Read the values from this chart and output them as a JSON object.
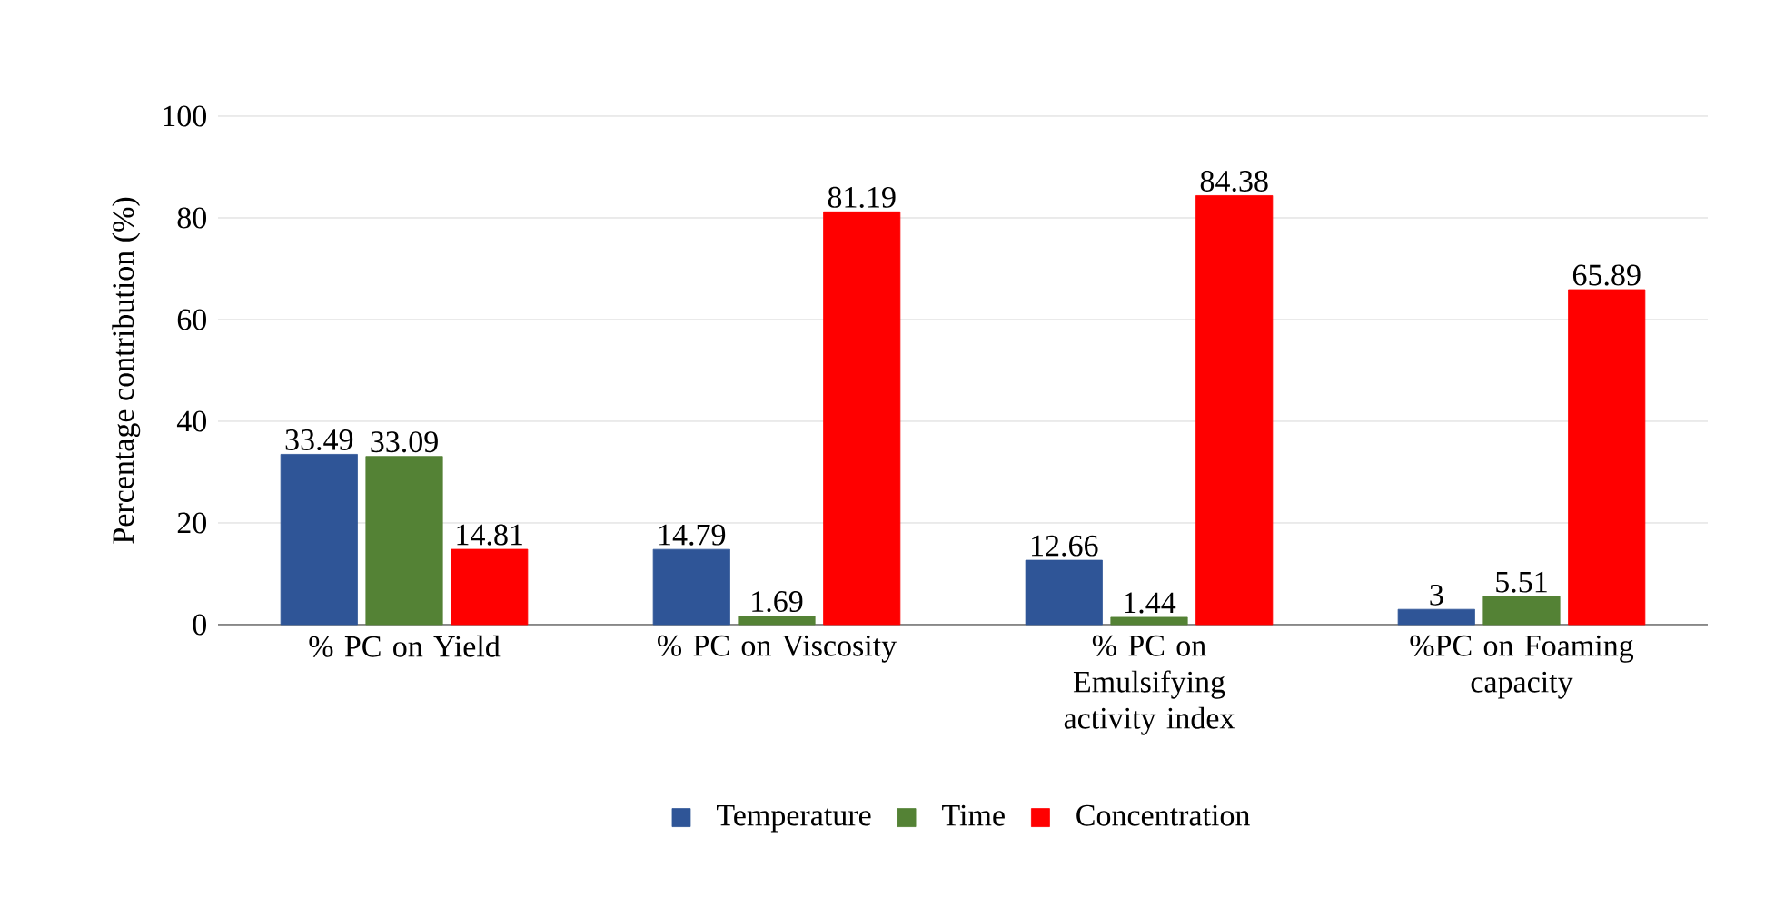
{
  "chart_data": {
    "type": "bar",
    "ylabel": "Percentage contribution (%)",
    "categories": [
      "% PC on Yield",
      "% PC on Viscosity",
      "% PC on Emulsifying activity index",
      "%PC on Foaming capacity"
    ],
    "series": [
      {
        "name": "Temperature",
        "color": "#2f5597",
        "values": [
          33.49,
          14.79,
          12.66,
          3
        ]
      },
      {
        "name": "Time",
        "color": "#548235",
        "values": [
          33.09,
          1.69,
          1.44,
          5.51
        ]
      },
      {
        "name": "Concentration",
        "color": "#ff0000",
        "values": [
          14.81,
          81.19,
          84.38,
          65.89
        ]
      }
    ],
    "ylim": [
      0,
      100
    ],
    "yticks": [
      0,
      20,
      40,
      60,
      80,
      100
    ],
    "grid": "y",
    "legend": "bottom",
    "data_labels": true
  }
}
